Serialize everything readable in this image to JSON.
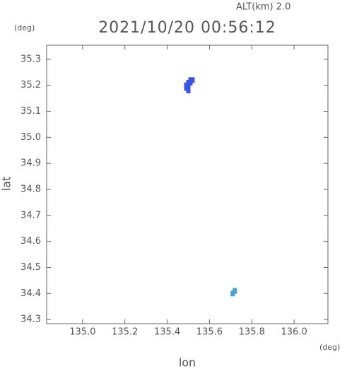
{
  "chart_data": {
    "type": "scatter",
    "title": "2021/10/20 00:56:12",
    "annotation": "ALT(km) 2.0",
    "x_label": "lon",
    "y_label": "lat",
    "x_unit": "(deg)",
    "y_unit": "(deg)",
    "xlim": [
      134.83,
      136.16
    ],
    "ylim": [
      34.284,
      35.354
    ],
    "xticks": [
      {
        "value": 135,
        "label": "135.0"
      },
      135.2,
      135.4,
      135.6,
      135.8,
      {
        "value": 136,
        "label": "136.0"
      }
    ],
    "yticks": [
      34.3,
      34.4,
      34.5,
      34.6,
      34.7,
      34.8,
      34.9,
      {
        "value": 35,
        "label": "35.0"
      },
      35.1,
      35.2,
      35.3
    ],
    "series": [
      {
        "color": "#3a55e0",
        "x": [
          135.5,
          135.51,
          135.52,
          135.5,
          135.49,
          135.49,
          135.5,
          135.51
        ],
        "values": [
          35.21,
          35.22,
          35.22,
          35.2,
          35.19,
          35.2,
          35.18,
          35.21
        ]
      },
      {
        "color": "#4aa0d0",
        "x": [
          135.71,
          135.72
        ],
        "values": [
          34.4,
          34.41
        ]
      }
    ]
  }
}
